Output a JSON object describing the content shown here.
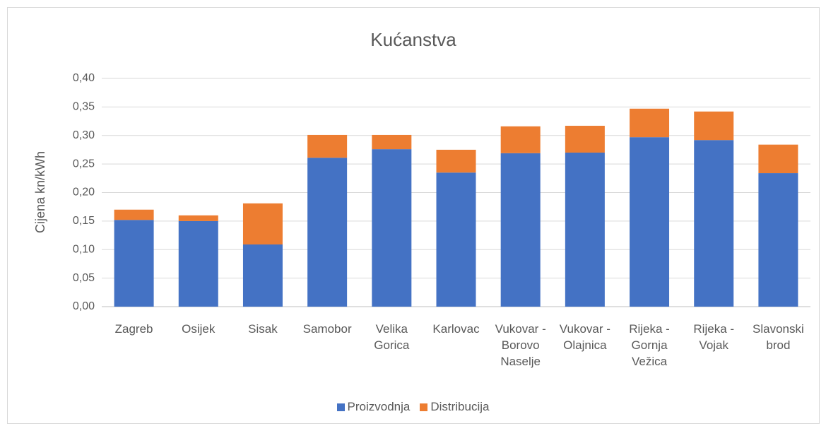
{
  "chart_data": {
    "type": "stacked_bar",
    "title": "Kućanstva",
    "ylabel": "Cijena kn/kWh",
    "categories": [
      "Zagreb",
      "Osijek",
      "Sisak",
      "Samobor",
      "Velika Gorica",
      "Karlovac",
      "Vukovar - Borovo Naselje",
      "Vukovar - Olajnica",
      "Rijeka - Gornja Vežica",
      "Rijeka - Vojak",
      "Slavonski brod"
    ],
    "series": [
      {
        "name": "Proizvodnja",
        "color": "#4472c4",
        "values": [
          0.152,
          0.15,
          0.109,
          0.261,
          0.276,
          0.235,
          0.269,
          0.27,
          0.297,
          0.292,
          0.234
        ]
      },
      {
        "name": "Distribucija",
        "color": "#ed7d31",
        "values": [
          0.018,
          0.01,
          0.072,
          0.04,
          0.025,
          0.04,
          0.047,
          0.047,
          0.05,
          0.05,
          0.05
        ]
      }
    ],
    "ylim": [
      0,
      0.4
    ],
    "yticks": [
      {
        "value": 0,
        "label": "0,00"
      },
      {
        "value": 0.05,
        "label": "0,05"
      },
      {
        "value": 0.1,
        "label": "0,10"
      },
      {
        "value": 0.15,
        "label": "0,15"
      },
      {
        "value": 0.2,
        "label": "0,20"
      },
      {
        "value": 0.25,
        "label": "0,25"
      },
      {
        "value": 0.3,
        "label": "0,30"
      },
      {
        "value": 0.35,
        "label": "0,35"
      },
      {
        "value": 0.4,
        "label": "0,40"
      }
    ],
    "grid": true,
    "legend": "bottom"
  }
}
